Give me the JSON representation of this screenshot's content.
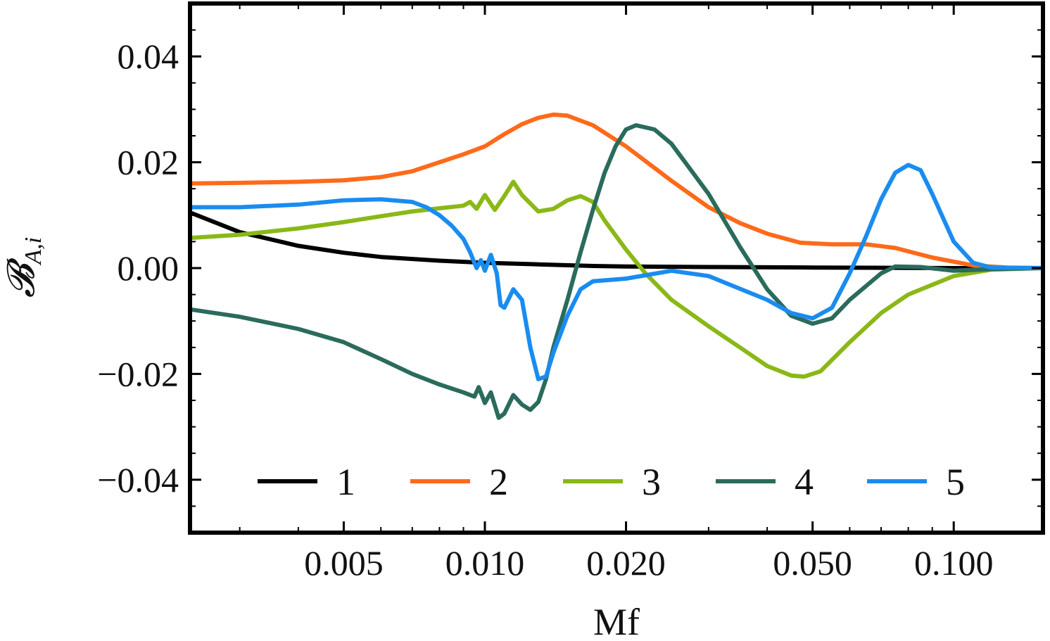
{
  "chart_data": {
    "type": "line",
    "xlabel": "Mf",
    "ylabel": "𝓑",
    "ylabel_sub": "A,i",
    "xscale": "log",
    "xlim": [
      0.00235,
      0.155
    ],
    "ylim": [
      -0.05,
      0.05
    ],
    "xticks": [
      0.005,
      0.01,
      0.02,
      0.05,
      0.1
    ],
    "xtick_labels": [
      "0.005",
      "0.010",
      "0.020",
      "0.050",
      "0.100"
    ],
    "yticks": [
      0.04,
      0.02,
      0.0,
      -0.02,
      -0.04
    ],
    "ytick_labels": [
      "0.04",
      "0.02",
      "0.00",
      "−0.02",
      "−0.04"
    ],
    "grid": false,
    "legend_position": "bottom, horizontal",
    "series": [
      {
        "name": "1",
        "color": "#000000",
        "points": [
          [
            0.00235,
            0.0105
          ],
          [
            0.003,
            0.0068
          ],
          [
            0.004,
            0.0042
          ],
          [
            0.005,
            0.0029
          ],
          [
            0.006,
            0.0021
          ],
          [
            0.008,
            0.0014
          ],
          [
            0.01,
            0.001
          ],
          [
            0.013,
            0.0007
          ],
          [
            0.017,
            0.0004
          ],
          [
            0.02,
            0.0003
          ],
          [
            0.03,
            0.0002
          ],
          [
            0.05,
            0.0001
          ],
          [
            0.1,
            0.0
          ],
          [
            0.155,
            0.0
          ]
        ]
      },
      {
        "name": "2",
        "color": "#ff6a1a",
        "points": [
          [
            0.00235,
            0.016
          ],
          [
            0.003,
            0.0161
          ],
          [
            0.004,
            0.0163
          ],
          [
            0.005,
            0.0166
          ],
          [
            0.006,
            0.0172
          ],
          [
            0.007,
            0.0183
          ],
          [
            0.008,
            0.02
          ],
          [
            0.009,
            0.0215
          ],
          [
            0.01,
            0.023
          ],
          [
            0.011,
            0.0253
          ],
          [
            0.012,
            0.0272
          ],
          [
            0.013,
            0.0284
          ],
          [
            0.014,
            0.029
          ],
          [
            0.015,
            0.0288
          ],
          [
            0.017,
            0.027
          ],
          [
            0.02,
            0.023
          ],
          [
            0.025,
            0.0165
          ],
          [
            0.03,
            0.0115
          ],
          [
            0.035,
            0.0085
          ],
          [
            0.04,
            0.0065
          ],
          [
            0.047,
            0.0048
          ],
          [
            0.055,
            0.0045
          ],
          [
            0.065,
            0.0045
          ],
          [
            0.075,
            0.0038
          ],
          [
            0.09,
            0.002
          ],
          [
            0.11,
            0.0005
          ],
          [
            0.13,
            0.0001
          ],
          [
            0.155,
            0.0
          ]
        ]
      },
      {
        "name": "3",
        "color": "#8ab817",
        "points": [
          [
            0.00235,
            0.0057
          ],
          [
            0.003,
            0.0063
          ],
          [
            0.004,
            0.0075
          ],
          [
            0.005,
            0.0087
          ],
          [
            0.006,
            0.0098
          ],
          [
            0.007,
            0.0107
          ],
          [
            0.008,
            0.0113
          ],
          [
            0.009,
            0.0118
          ],
          [
            0.0093,
            0.0125
          ],
          [
            0.0096,
            0.0112
          ],
          [
            0.01,
            0.0138
          ],
          [
            0.0105,
            0.011
          ],
          [
            0.011,
            0.0136
          ],
          [
            0.0115,
            0.0163
          ],
          [
            0.012,
            0.0138
          ],
          [
            0.013,
            0.0107
          ],
          [
            0.014,
            0.0112
          ],
          [
            0.015,
            0.0128
          ],
          [
            0.016,
            0.0136
          ],
          [
            0.017,
            0.0125
          ],
          [
            0.018,
            0.009
          ],
          [
            0.02,
            0.0035
          ],
          [
            0.022,
            -0.001
          ],
          [
            0.025,
            -0.006
          ],
          [
            0.03,
            -0.011
          ],
          [
            0.035,
            -0.015
          ],
          [
            0.04,
            -0.0185
          ],
          [
            0.045,
            -0.0203
          ],
          [
            0.048,
            -0.0205
          ],
          [
            0.052,
            -0.0195
          ],
          [
            0.06,
            -0.014
          ],
          [
            0.07,
            -0.0085
          ],
          [
            0.08,
            -0.005
          ],
          [
            0.1,
            -0.0015
          ],
          [
            0.12,
            -0.0003
          ],
          [
            0.155,
            0.0
          ]
        ]
      },
      {
        "name": "4",
        "color": "#2a6b5c",
        "points": [
          [
            0.00235,
            -0.0078
          ],
          [
            0.003,
            -0.0092
          ],
          [
            0.004,
            -0.0115
          ],
          [
            0.005,
            -0.014
          ],
          [
            0.006,
            -0.0172
          ],
          [
            0.007,
            -0.02
          ],
          [
            0.008,
            -0.022
          ],
          [
            0.009,
            -0.0235
          ],
          [
            0.0095,
            -0.0243
          ],
          [
            0.0097,
            -0.0225
          ],
          [
            0.01,
            -0.0255
          ],
          [
            0.0103,
            -0.0235
          ],
          [
            0.0107,
            -0.0283
          ],
          [
            0.011,
            -0.0275
          ],
          [
            0.0115,
            -0.024
          ],
          [
            0.012,
            -0.0258
          ],
          [
            0.0125,
            -0.0268
          ],
          [
            0.013,
            -0.0253
          ],
          [
            0.0135,
            -0.021
          ],
          [
            0.014,
            -0.015
          ],
          [
            0.015,
            -0.006
          ],
          [
            0.016,
            0.003
          ],
          [
            0.017,
            0.011
          ],
          [
            0.018,
            0.018
          ],
          [
            0.019,
            0.023
          ],
          [
            0.02,
            0.0262
          ],
          [
            0.021,
            0.027
          ],
          [
            0.023,
            0.0262
          ],
          [
            0.025,
            0.0235
          ],
          [
            0.03,
            0.014
          ],
          [
            0.035,
            0.004
          ],
          [
            0.04,
            -0.004
          ],
          [
            0.045,
            -0.009
          ],
          [
            0.05,
            -0.0105
          ],
          [
            0.055,
            -0.0095
          ],
          [
            0.06,
            -0.006
          ],
          [
            0.07,
            -0.001
          ],
          [
            0.075,
            0.0003
          ],
          [
            0.085,
            0.0002
          ],
          [
            0.1,
            -0.0005
          ],
          [
            0.12,
            -0.0002
          ],
          [
            0.155,
            0.0
          ]
        ]
      },
      {
        "name": "5",
        "color": "#1a8cf0",
        "points": [
          [
            0.00235,
            0.0115
          ],
          [
            0.003,
            0.0115
          ],
          [
            0.004,
            0.012
          ],
          [
            0.005,
            0.0128
          ],
          [
            0.006,
            0.013
          ],
          [
            0.007,
            0.0125
          ],
          [
            0.0075,
            0.0115
          ],
          [
            0.008,
            0.01
          ],
          [
            0.0085,
            0.008
          ],
          [
            0.009,
            0.0055
          ],
          [
            0.0093,
            0.003
          ],
          [
            0.0096,
            0.0
          ],
          [
            0.0098,
            0.0015
          ],
          [
            0.01,
            -0.0005
          ],
          [
            0.0103,
            0.0025
          ],
          [
            0.0106,
            -0.001
          ],
          [
            0.0108,
            -0.007
          ],
          [
            0.011,
            -0.0075
          ],
          [
            0.0115,
            -0.004
          ],
          [
            0.012,
            -0.006
          ],
          [
            0.0125,
            -0.015
          ],
          [
            0.013,
            -0.021
          ],
          [
            0.0135,
            -0.0205
          ],
          [
            0.014,
            -0.016
          ],
          [
            0.015,
            -0.009
          ],
          [
            0.016,
            -0.004
          ],
          [
            0.017,
            -0.0025
          ],
          [
            0.02,
            -0.002
          ],
          [
            0.025,
            -0.0005
          ],
          [
            0.03,
            -0.0015
          ],
          [
            0.04,
            -0.006
          ],
          [
            0.045,
            -0.0085
          ],
          [
            0.05,
            -0.0095
          ],
          [
            0.055,
            -0.0075
          ],
          [
            0.06,
            -0.001
          ],
          [
            0.065,
            0.006
          ],
          [
            0.07,
            0.013
          ],
          [
            0.075,
            0.018
          ],
          [
            0.08,
            0.0195
          ],
          [
            0.085,
            0.0185
          ],
          [
            0.09,
            0.014
          ],
          [
            0.1,
            0.005
          ],
          [
            0.11,
            0.001
          ],
          [
            0.12,
            0.0001
          ],
          [
            0.155,
            0.0
          ]
        ]
      }
    ]
  }
}
